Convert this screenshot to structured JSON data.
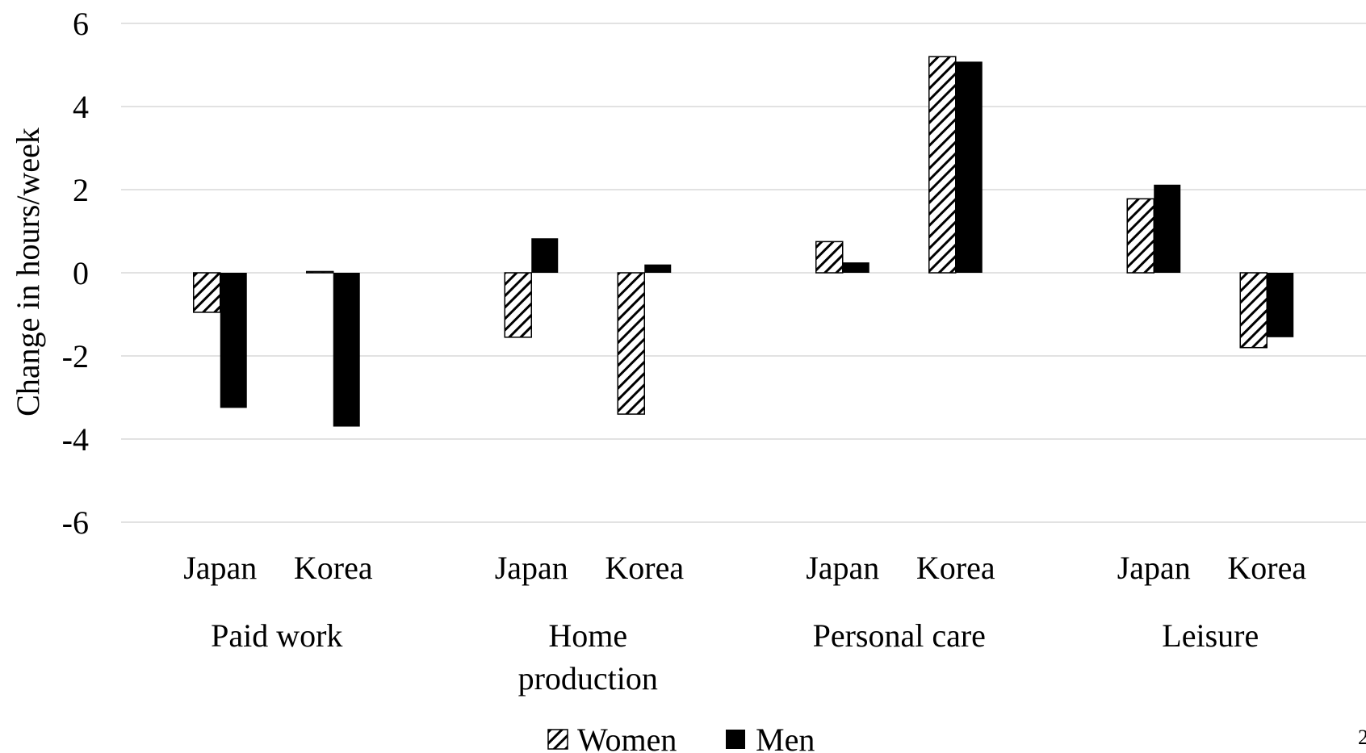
{
  "chart_data": {
    "type": "bar",
    "ylabel": "Change in hours/week",
    "ylim": [
      -6,
      6
    ],
    "yticks": [
      6,
      4,
      2,
      0,
      -2,
      -4,
      -6
    ],
    "ytick_labels": [
      "6",
      "4",
      "2",
      "0",
      "-2",
      "-4",
      "-6"
    ],
    "grid": true,
    "groups": [
      {
        "label": "Paid work",
        "categories": [
          "Japan",
          "Korea"
        ]
      },
      {
        "label": "Home production",
        "categories": [
          "Japan",
          "Korea"
        ]
      },
      {
        "label": "Personal care",
        "categories": [
          "Japan",
          "Korea"
        ]
      },
      {
        "label": "Leisure",
        "categories": [
          "Japan",
          "Korea"
        ]
      }
    ],
    "series": [
      {
        "name": "Women",
        "pattern": "hatched",
        "values": [
          -0.95,
          0.03,
          -1.55,
          -3.4,
          0.75,
          5.2,
          1.78,
          -1.8
        ]
      },
      {
        "name": "Men",
        "pattern": "solid",
        "values": [
          -3.25,
          -3.7,
          0.83,
          0.2,
          0.25,
          5.08,
          2.12,
          -1.55
        ]
      }
    ],
    "legend_position": "bottom-center",
    "colors": {
      "men": "#000000",
      "women_fill": "#ffffff",
      "women_hatch": "#000000",
      "grid": "#d9d9d9"
    },
    "page_number": "2"
  }
}
